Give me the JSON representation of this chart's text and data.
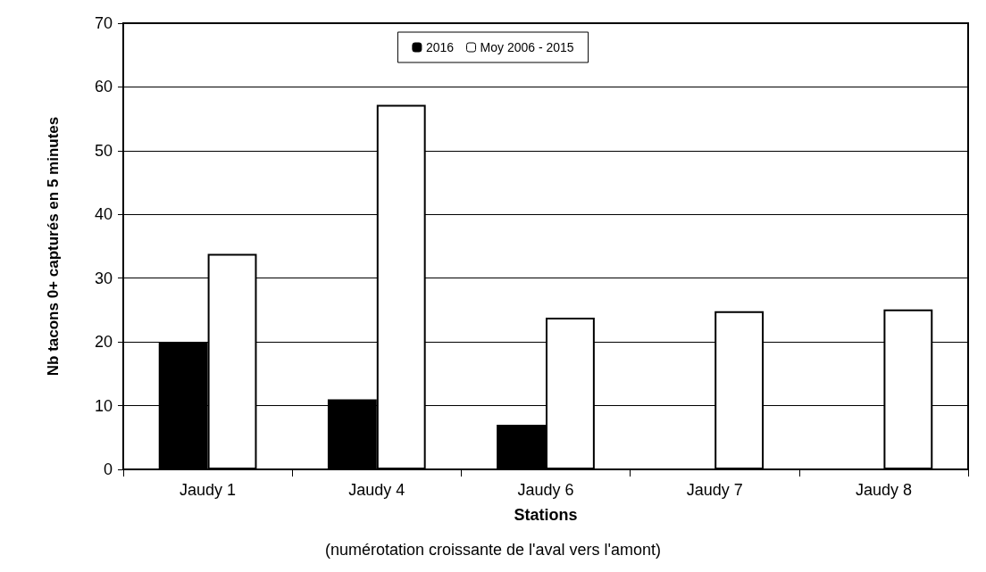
{
  "chart_data": {
    "type": "bar",
    "xlabel": "Stations",
    "ylabel": "Nb tacons 0+ capturés en 5 minutes",
    "annotations": [
      "(numérotation croissante de l'aval vers l'amont)"
    ],
    "categories": [
      "Jaudy 1",
      "Jaudy 4",
      "Jaudy 6",
      "Jaudy 7",
      "Jaudy 8"
    ],
    "series": [
      {
        "name": "2016",
        "color": "#000000",
        "values": [
          20,
          11,
          7,
          null,
          null
        ]
      },
      {
        "name": "Moy 2006 - 2015",
        "color": "#ffffff",
        "values": [
          33.8,
          57.2,
          23.8,
          24.8,
          25.1
        ]
      }
    ],
    "ylim": [
      0,
      70
    ],
    "yticks": [
      0,
      10,
      20,
      30,
      40,
      50,
      60,
      70
    ],
    "grid": "y",
    "legend": "top"
  }
}
